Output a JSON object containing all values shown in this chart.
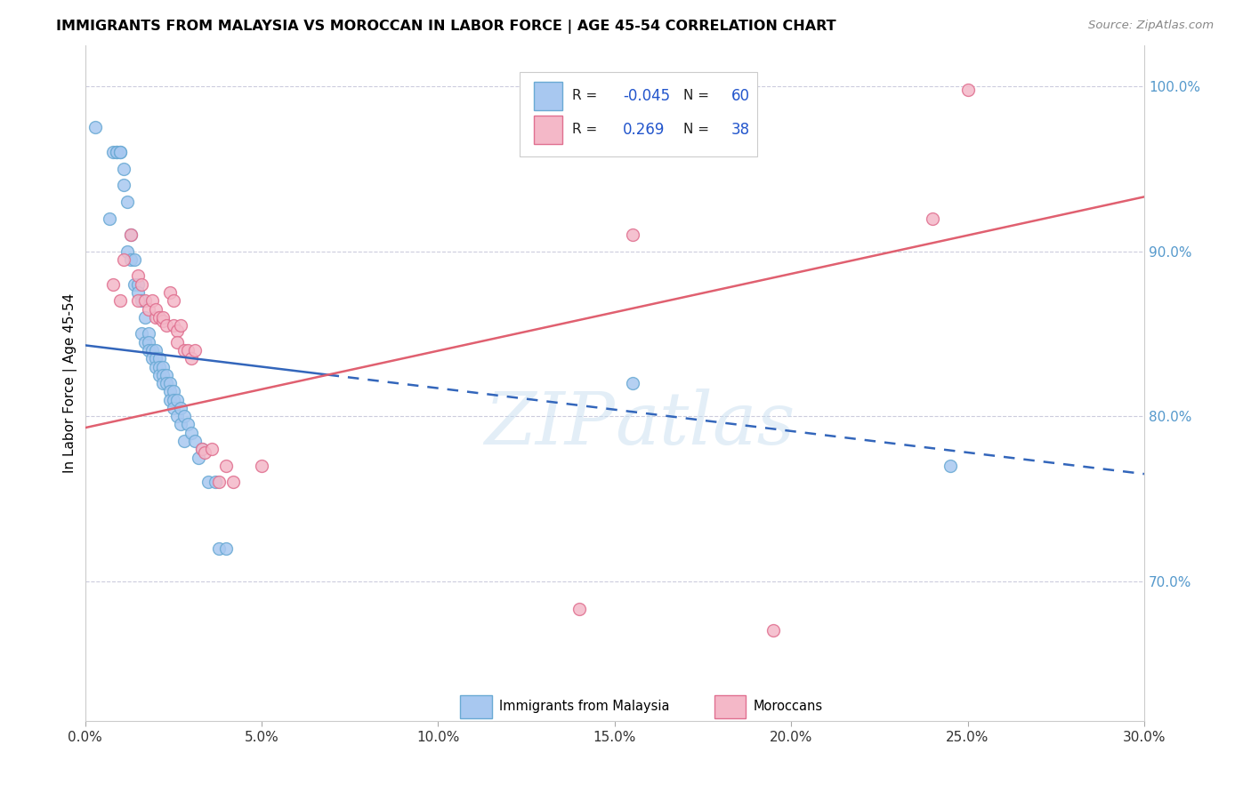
{
  "title": "IMMIGRANTS FROM MALAYSIA VS MOROCCAN IN LABOR FORCE | AGE 45-54 CORRELATION CHART",
  "source": "Source: ZipAtlas.com",
  "xlabel_ticks": [
    "0.0%",
    "5.0%",
    "10.0%",
    "15.0%",
    "20.0%",
    "25.0%",
    "30.0%"
  ],
  "xlabel_vals": [
    0.0,
    0.05,
    0.1,
    0.15,
    0.2,
    0.25,
    0.3
  ],
  "ylabel_ticks": [
    "100.0%",
    "90.0%",
    "80.0%",
    "70.0%"
  ],
  "ylabel_vals": [
    1.0,
    0.9,
    0.8,
    0.7
  ],
  "xmin": 0.0,
  "xmax": 0.3,
  "ymin": 0.615,
  "ymax": 1.025,
  "ylabel": "In Labor Force | Age 45-54",
  "malaysia_color": "#a8c8f0",
  "malaysia_edge": "#6aaad4",
  "moroccan_color": "#f4b8c8",
  "moroccan_edge": "#e07090",
  "malaysia_R": -0.045,
  "malaysia_N": 60,
  "moroccan_R": 0.269,
  "moroccan_N": 38,
  "legend_label_malaysia": "Immigrants from Malaysia",
  "legend_label_moroccan": "Moroccans",
  "watermark_zip": "ZIP",
  "watermark_atlas": "atlas",
  "malaysia_trend_x0": 0.0,
  "malaysia_trend_y0": 0.843,
  "malaysia_trend_x1": 0.3,
  "malaysia_trend_y1": 0.765,
  "moroccan_trend_x0": 0.0,
  "moroccan_trend_y0": 0.793,
  "moroccan_trend_x1": 0.3,
  "moroccan_trend_y1": 0.933,
  "malaysia_scatter_x": [
    0.003,
    0.007,
    0.008,
    0.009,
    0.009,
    0.01,
    0.01,
    0.011,
    0.011,
    0.012,
    0.012,
    0.013,
    0.013,
    0.014,
    0.014,
    0.015,
    0.015,
    0.016,
    0.016,
    0.017,
    0.017,
    0.018,
    0.018,
    0.018,
    0.019,
    0.019,
    0.02,
    0.02,
    0.02,
    0.021,
    0.021,
    0.021,
    0.022,
    0.022,
    0.022,
    0.023,
    0.023,
    0.024,
    0.024,
    0.024,
    0.025,
    0.025,
    0.025,
    0.026,
    0.026,
    0.027,
    0.027,
    0.028,
    0.028,
    0.029,
    0.03,
    0.031,
    0.032,
    0.033,
    0.035,
    0.037,
    0.038,
    0.04,
    0.155,
    0.245
  ],
  "malaysia_scatter_y": [
    0.975,
    0.92,
    0.96,
    0.96,
    0.96,
    0.96,
    0.96,
    0.95,
    0.94,
    0.93,
    0.9,
    0.91,
    0.895,
    0.895,
    0.88,
    0.88,
    0.875,
    0.87,
    0.85,
    0.86,
    0.845,
    0.85,
    0.845,
    0.84,
    0.84,
    0.835,
    0.84,
    0.835,
    0.83,
    0.835,
    0.83,
    0.825,
    0.83,
    0.825,
    0.82,
    0.825,
    0.82,
    0.82,
    0.815,
    0.81,
    0.815,
    0.81,
    0.805,
    0.81,
    0.8,
    0.805,
    0.795,
    0.8,
    0.785,
    0.795,
    0.79,
    0.785,
    0.775,
    0.78,
    0.76,
    0.76,
    0.72,
    0.72,
    0.82,
    0.77
  ],
  "moroccan_scatter_x": [
    0.008,
    0.01,
    0.011,
    0.013,
    0.015,
    0.015,
    0.016,
    0.017,
    0.018,
    0.019,
    0.02,
    0.02,
    0.021,
    0.022,
    0.022,
    0.023,
    0.024,
    0.025,
    0.025,
    0.026,
    0.026,
    0.027,
    0.028,
    0.029,
    0.03,
    0.031,
    0.033,
    0.034,
    0.036,
    0.038,
    0.04,
    0.042,
    0.05,
    0.14,
    0.155,
    0.195,
    0.24,
    0.25
  ],
  "moroccan_scatter_y": [
    0.88,
    0.87,
    0.895,
    0.91,
    0.885,
    0.87,
    0.88,
    0.87,
    0.865,
    0.87,
    0.86,
    0.865,
    0.86,
    0.858,
    0.86,
    0.855,
    0.875,
    0.87,
    0.855,
    0.852,
    0.845,
    0.855,
    0.84,
    0.84,
    0.835,
    0.84,
    0.78,
    0.778,
    0.78,
    0.76,
    0.77,
    0.76,
    0.77,
    0.683,
    0.91,
    0.67,
    0.92,
    0.998
  ]
}
